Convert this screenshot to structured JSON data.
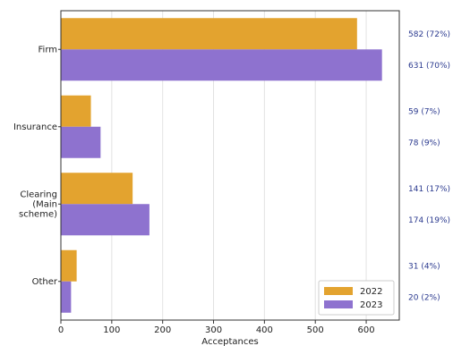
{
  "chart_data": {
    "type": "bar",
    "orientation": "horizontal",
    "title": "",
    "xlabel": "Acceptances",
    "ylabel": "",
    "xlim": [
      0,
      665
    ],
    "xticks": [
      0,
      100,
      200,
      300,
      400,
      500,
      600
    ],
    "grid": "vertical",
    "legend_position": "bottom-right",
    "categories": [
      "Firm",
      "Insurance",
      "Clearing\n(Main\nscheme)",
      "Other"
    ],
    "series": [
      {
        "name": "2022",
        "color": "#E3A32F",
        "values": [
          582,
          59,
          141,
          31
        ],
        "annotations": [
          "582 (72%)",
          "59 (7%)",
          "141 (17%)",
          "31 (4%)"
        ]
      },
      {
        "name": "2023",
        "color": "#8E72CF",
        "values": [
          631,
          78,
          174,
          20
        ],
        "annotations": [
          "631 (70%)",
          "78 (9%)",
          "174 (19%)",
          "20 (2%)"
        ]
      }
    ]
  }
}
